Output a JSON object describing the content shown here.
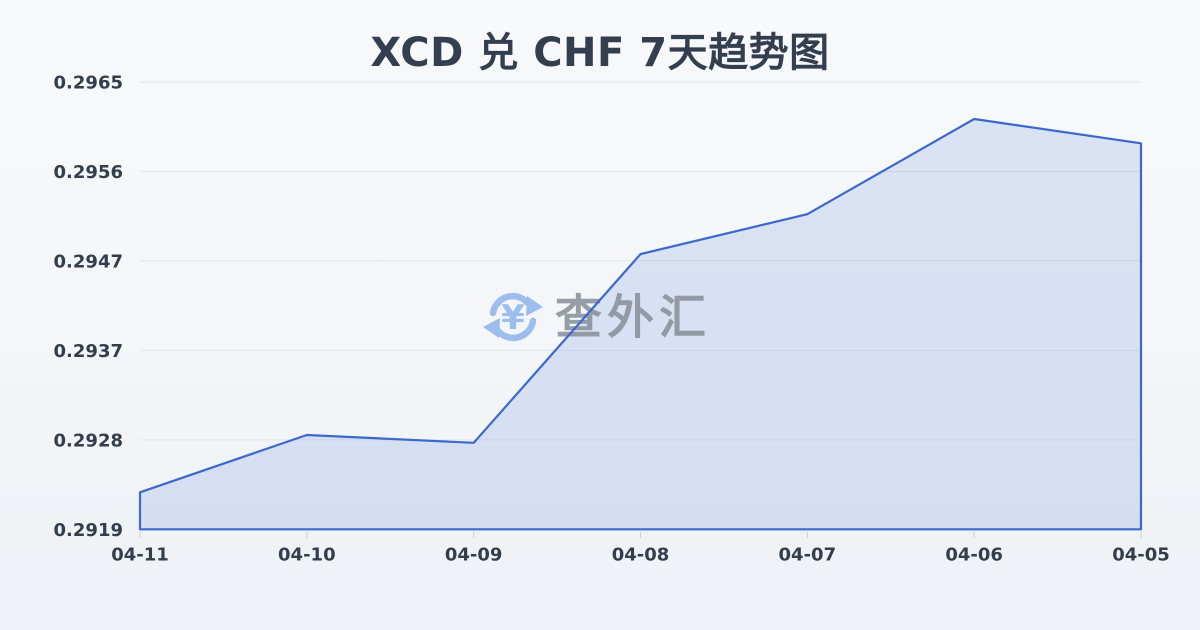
{
  "page": {
    "title": "XCD 兑 CHF 7天趋势图"
  },
  "watermark": {
    "text": "查外汇",
    "icon": "currency-exchange-icon",
    "icon_color": "#8fb4ee",
    "icon_symbol": "¥",
    "text_color": "#878e99"
  },
  "chart_data": {
    "type": "area",
    "title": "XCD 兑 CHF 7天趋势图",
    "xlabel": "",
    "ylabel": "",
    "categories": [
      "04-11",
      "04-10",
      "04-09",
      "04-08",
      "04-07",
      "04-06",
      "04-05"
    ],
    "series": [
      {
        "name": "XCD/CHF",
        "values": [
          0.29228,
          0.29287,
          0.29279,
          0.29473,
          0.29514,
          0.29612,
          0.29587
        ]
      }
    ],
    "yticks": [
      "0.2919",
      "0.2928",
      "0.2937",
      "0.2947",
      "0.2956",
      "0.2965"
    ],
    "ylim": [
      0.2919,
      0.2965
    ],
    "grid": true,
    "legend": "none",
    "colors": {
      "line": "#3a68cd",
      "fill": "rgba(61,107,206,0.15)",
      "gridline": "#e2e5e9",
      "tick": "#ccd1d7",
      "axis_label": "#333d4b",
      "title": "#333e4e"
    }
  }
}
